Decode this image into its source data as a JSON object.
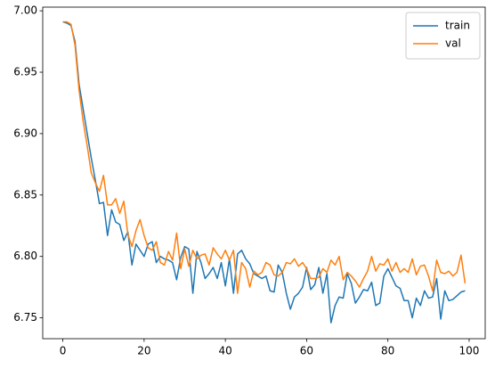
{
  "chart_data": {
    "type": "line",
    "x": [
      0,
      1,
      2,
      3,
      4,
      5,
      6,
      7,
      8,
      9,
      10,
      11,
      12,
      13,
      14,
      15,
      16,
      17,
      18,
      19,
      20,
      21,
      22,
      23,
      24,
      25,
      26,
      27,
      28,
      29,
      30,
      31,
      32,
      33,
      34,
      35,
      36,
      37,
      38,
      39,
      40,
      41,
      42,
      43,
      44,
      45,
      46,
      47,
      48,
      49,
      50,
      51,
      52,
      53,
      54,
      55,
      56,
      57,
      58,
      59,
      60,
      61,
      62,
      63,
      64,
      65,
      66,
      67,
      68,
      69,
      70,
      71,
      72,
      73,
      74,
      75,
      76,
      77,
      78,
      79,
      80,
      81,
      82,
      83,
      84,
      85,
      86,
      87,
      88,
      89,
      90,
      91,
      92,
      93,
      94,
      95,
      96,
      97,
      98,
      99
    ],
    "series": [
      {
        "name": "train",
        "color": "#1f77b4",
        "values": [
          6.991,
          6.99,
          6.988,
          6.975,
          6.94,
          6.92,
          6.9,
          6.88,
          6.862,
          6.843,
          6.844,
          6.817,
          6.838,
          6.828,
          6.826,
          6.813,
          6.82,
          6.793,
          6.81,
          6.805,
          6.8,
          6.81,
          6.812,
          6.795,
          6.8,
          6.798,
          6.797,
          6.795,
          6.781,
          6.799,
          6.808,
          6.806,
          6.77,
          6.804,
          6.795,
          6.782,
          6.786,
          6.791,
          6.782,
          6.795,
          6.776,
          6.798,
          6.77,
          6.802,
          6.805,
          6.798,
          6.794,
          6.786,
          6.784,
          6.782,
          6.784,
          6.772,
          6.771,
          6.793,
          6.787,
          6.77,
          6.757,
          6.767,
          6.77,
          6.775,
          6.791,
          6.773,
          6.777,
          6.791,
          6.77,
          6.786,
          6.746,
          6.76,
          6.767,
          6.766,
          6.786,
          6.778,
          6.762,
          6.767,
          6.773,
          6.772,
          6.779,
          6.76,
          6.762,
          6.784,
          6.79,
          6.783,
          6.776,
          6.774,
          6.764,
          6.764,
          6.75,
          6.766,
          6.76,
          6.772,
          6.766,
          6.767,
          6.782,
          6.749,
          6.772,
          6.764,
          6.765,
          6.768,
          6.771,
          6.772
        ]
      },
      {
        "name": "val",
        "color": "#ff7f0e",
        "values": [
          6.991,
          6.991,
          6.989,
          6.972,
          6.935,
          6.91,
          6.89,
          6.868,
          6.86,
          6.853,
          6.866,
          6.842,
          6.842,
          6.847,
          6.835,
          6.845,
          6.818,
          6.808,
          6.821,
          6.83,
          6.817,
          6.807,
          6.805,
          6.812,
          6.795,
          6.793,
          6.804,
          6.797,
          6.819,
          6.79,
          6.806,
          6.792,
          6.805,
          6.798,
          6.801,
          6.802,
          6.793,
          6.807,
          6.802,
          6.798,
          6.805,
          6.797,
          6.805,
          6.77,
          6.795,
          6.79,
          6.775,
          6.788,
          6.785,
          6.787,
          6.795,
          6.793,
          6.785,
          6.784,
          6.787,
          6.795,
          6.794,
          6.798,
          6.792,
          6.795,
          6.79,
          6.782,
          6.782,
          6.783,
          6.79,
          6.787,
          6.797,
          6.793,
          6.8,
          6.781,
          6.787,
          6.784,
          6.78,
          6.775,
          6.782,
          6.788,
          6.8,
          6.788,
          6.794,
          6.793,
          6.798,
          6.788,
          6.795,
          6.787,
          6.79,
          6.787,
          6.798,
          6.785,
          6.792,
          6.793,
          6.784,
          6.772,
          6.797,
          6.787,
          6.786,
          6.788,
          6.784,
          6.787,
          6.801,
          6.778
        ]
      }
    ],
    "xlim": [
      -4.95,
      103.95
    ],
    "xticks": [
      0,
      20,
      40,
      60,
      80,
      100
    ],
    "ylim": [
      6.733,
      7.003
    ],
    "yticks": [
      6.75,
      {
        "value": 6.8,
        "label": "6.80"
      },
      6.85,
      {
        "value": 6.9,
        "label": "6.90"
      },
      6.95,
      {
        "value": 7,
        "label": "7.00"
      }
    ],
    "legend": "upper right"
  }
}
